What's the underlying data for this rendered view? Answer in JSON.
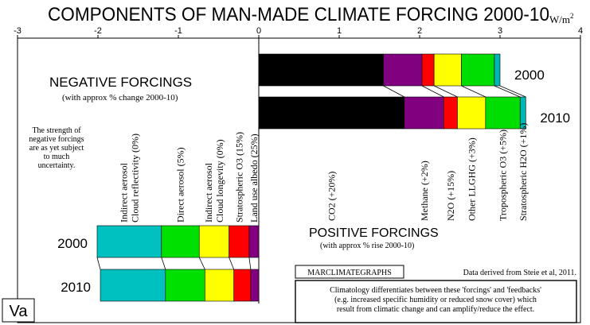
{
  "chart_data": {
    "type": "bar",
    "orientation": "horizontal-stacked",
    "title": "COMPONENTS OF MAN-MADE CLIMATE FORCING 2000-10",
    "unit": "W/m",
    "unit_exponent": "2",
    "xlim": [
      -3,
      4
    ],
    "ticks": [
      -3,
      -2,
      -1,
      0,
      1,
      2,
      3,
      4
    ],
    "grid": false,
    "years": [
      "2000",
      "2010"
    ],
    "positive": {
      "heading": "POSITIVE FORCINGS",
      "subheading": "(with approx % rise 2000-10)",
      "components": [
        {
          "label": "CO2 (+20%)",
          "color": "#000000",
          "values": [
            1.55,
            1.81
          ]
        },
        {
          "label": "Methane (+2%)",
          "color": "#800080",
          "values": [
            0.48,
            0.49
          ]
        },
        {
          "label": "N2O (+15%)",
          "color": "#ff0000",
          "values": [
            0.15,
            0.17
          ]
        },
        {
          "label": "Other LLGHG (+3%)",
          "color": "#ffff00",
          "values": [
            0.34,
            0.35
          ]
        },
        {
          "label": "Tropospheric O3 (+5%)",
          "color": "#00dd00",
          "values": [
            0.41,
            0.43
          ]
        },
        {
          "label": "Stratospheric H2O (+1%)",
          "color": "#00b5b5",
          "values": [
            0.07,
            0.07
          ]
        }
      ]
    },
    "negative": {
      "heading": "NEGATIVE FORCINGS",
      "subheading": "(with approx % change 2000-10)",
      "note": [
        "The strength of",
        "negative forcings",
        "are as yet subject",
        "to much",
        "uncertainty."
      ],
      "components": [
        {
          "label": [
            "Indirect aerosol",
            "Cloud reflectivity (0%)"
          ],
          "color": "#00c0c0",
          "values": [
            -0.8,
            -0.81
          ]
        },
        {
          "label": [
            "Direct aerosol (5%)"
          ],
          "color": "#00e000",
          "values": [
            -0.47,
            -0.49
          ]
        },
        {
          "label": [
            "Indirect aerosol",
            "Cloud longevity (0%)"
          ],
          "color": "#ffff00",
          "values": [
            -0.37,
            -0.36
          ]
        },
        {
          "label": [
            "Stratospheric O3 (15%)"
          ],
          "color": "#ff0000",
          "values": [
            -0.25,
            -0.21
          ]
        },
        {
          "label": [
            "Land use albedo (25%)"
          ],
          "color": "#800080",
          "values": [
            -0.12,
            -0.1
          ]
        }
      ]
    },
    "brand": "MARCLIMATEGRAPHS",
    "source": "Data derived from Steie et al, 2011.",
    "footnote": [
      "Climatology differentiates between these 'forcings' and 'feedbacks'",
      "(e.g. increased specific humidity or reduced snow cover) which",
      "result from climatic change and can amplify/reduce the effect."
    ],
    "badge": "Va"
  }
}
